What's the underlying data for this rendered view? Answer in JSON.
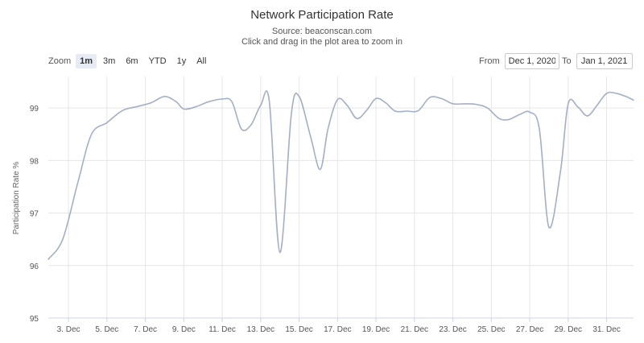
{
  "zoom": {
    "label": "Zoom",
    "buttons": [
      "1m",
      "3m",
      "6m",
      "YTD",
      "1y",
      "All"
    ],
    "active": "1m"
  },
  "range": {
    "from_label": "From",
    "from_value": "Dec 1, 2020",
    "to_label": "To",
    "to_value": "Jan 1, 2021"
  },
  "chart_data": {
    "type": "line",
    "title": "Network Participation Rate",
    "subtitle": "Source: beaconscan.com",
    "subtitle2": "Click and drag in the plot area to zoom in",
    "xlabel": "",
    "ylabel": "Participation Rate %",
    "xlim": [
      1.95,
      32.4
    ],
    "ylim": [
      95,
      99.6
    ],
    "yticks": [
      95,
      96,
      97,
      98,
      99
    ],
    "xticks": [
      {
        "x": 3,
        "label": "3. Dec"
      },
      {
        "x": 5,
        "label": "5. Dec"
      },
      {
        "x": 7,
        "label": "7. Dec"
      },
      {
        "x": 9,
        "label": "9. Dec"
      },
      {
        "x": 11,
        "label": "11. Dec"
      },
      {
        "x": 13,
        "label": "13. Dec"
      },
      {
        "x": 15,
        "label": "15. Dec"
      },
      {
        "x": 17,
        "label": "17. Dec"
      },
      {
        "x": 19,
        "label": "19. Dec"
      },
      {
        "x": 21,
        "label": "21. Dec"
      },
      {
        "x": 23,
        "label": "23. Dec"
      },
      {
        "x": 25,
        "label": "25. Dec"
      },
      {
        "x": 27,
        "label": "27. Dec"
      },
      {
        "x": 29,
        "label": "29. Dec"
      },
      {
        "x": 31,
        "label": "31. Dec"
      }
    ],
    "series": [
      {
        "name": "Participation Rate",
        "x": [
          1.95,
          2.7,
          3.5,
          4.2,
          5.0,
          5.8,
          6.6,
          7.3,
          8.0,
          8.6,
          9.0,
          9.6,
          10.3,
          11.0,
          11.5,
          12.0,
          12.5,
          13.0,
          13.45,
          14.0,
          14.6,
          15.0,
          15.6,
          16.1,
          16.5,
          17.0,
          17.5,
          18.0,
          18.5,
          19.0,
          19.5,
          20.0,
          20.6,
          21.2,
          21.8,
          22.4,
          23.0,
          23.6,
          24.2,
          24.8,
          25.4,
          25.9,
          26.5,
          27.0,
          27.5,
          28.0,
          28.6,
          29.0,
          29.5,
          30.0,
          30.5,
          31.0,
          31.5,
          32.0,
          32.4
        ],
        "y": [
          96.12,
          96.5,
          97.6,
          98.5,
          98.72,
          98.95,
          99.03,
          99.1,
          99.22,
          99.12,
          98.98,
          99.02,
          99.12,
          99.17,
          99.12,
          98.6,
          98.68,
          99.05,
          99.12,
          96.25,
          98.9,
          99.22,
          98.45,
          97.83,
          98.6,
          99.16,
          99.05,
          98.8,
          98.95,
          99.18,
          99.1,
          98.94,
          98.94,
          98.95,
          99.2,
          99.18,
          99.08,
          99.08,
          99.07,
          99.0,
          98.8,
          98.78,
          98.88,
          98.92,
          98.6,
          96.73,
          97.8,
          99.08,
          99.02,
          98.85,
          99.05,
          99.28,
          99.28,
          99.22,
          99.15
        ]
      }
    ]
  }
}
